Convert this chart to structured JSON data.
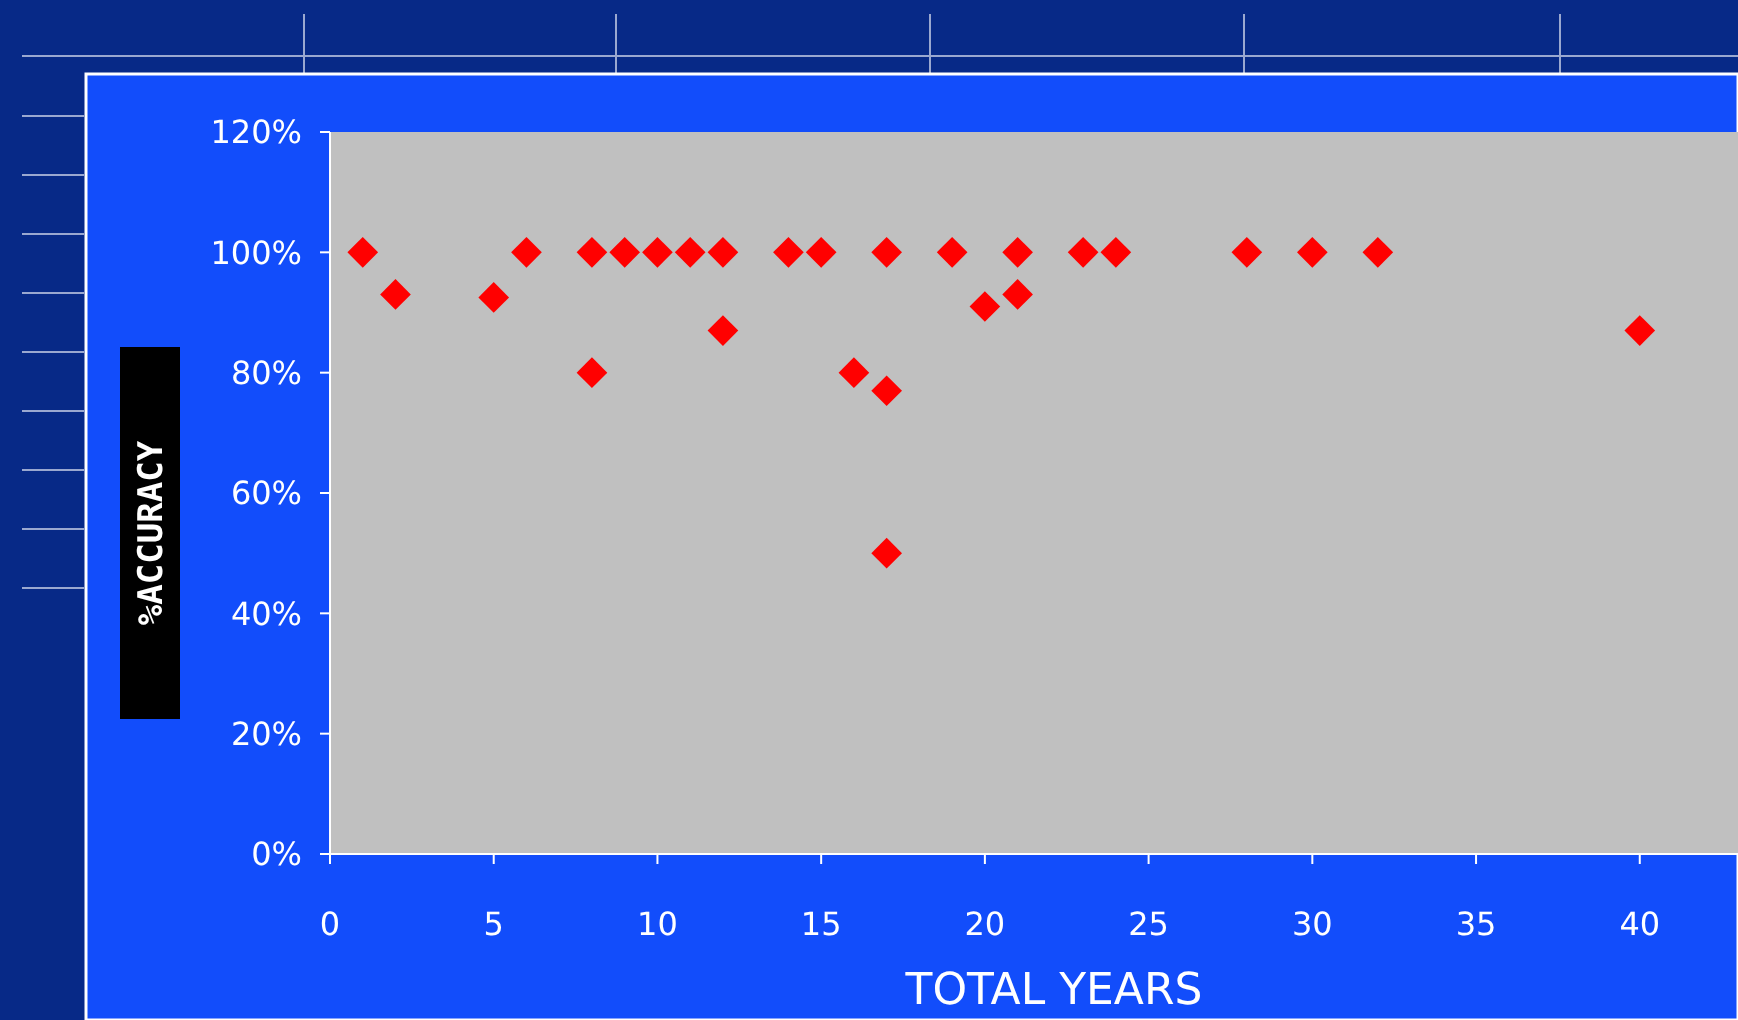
{
  "chart_data": {
    "type": "scatter",
    "xlabel": "TOTAL YEARS",
    "ylabel": "%ACCURACY",
    "x": [
      1,
      2,
      5,
      6,
      8,
      8,
      9,
      10,
      11,
      12,
      12,
      14,
      15,
      16,
      17,
      17,
      17,
      19,
      20,
      21,
      21,
      23,
      24,
      28,
      30,
      32,
      40
    ],
    "series": [
      {
        "color": "#ff0000",
        "values": [
          100,
          93,
          92.5,
          100,
          100,
          80,
          100,
          100,
          100,
          100,
          87,
          100,
          100,
          80,
          100,
          77,
          50,
          100,
          91,
          100,
          93,
          100,
          100,
          100,
          100,
          100,
          87
        ]
      }
    ],
    "xlim": [
      0,
      43
    ],
    "xticks": [
      0,
      5,
      10,
      15,
      20,
      25,
      30,
      35,
      40
    ],
    "ylim": [
      0,
      120
    ],
    "yticks": [
      {
        "value": 0,
        "label": "0%"
      },
      {
        "value": 20,
        "label": "20%"
      },
      {
        "value": 40,
        "label": "40%"
      },
      {
        "value": 60,
        "label": "60%"
      },
      {
        "value": 80,
        "label": "80%"
      },
      {
        "value": 100,
        "label": "100%"
      },
      {
        "value": 120,
        "label": "120%"
      }
    ],
    "marker": "diamond"
  }
}
